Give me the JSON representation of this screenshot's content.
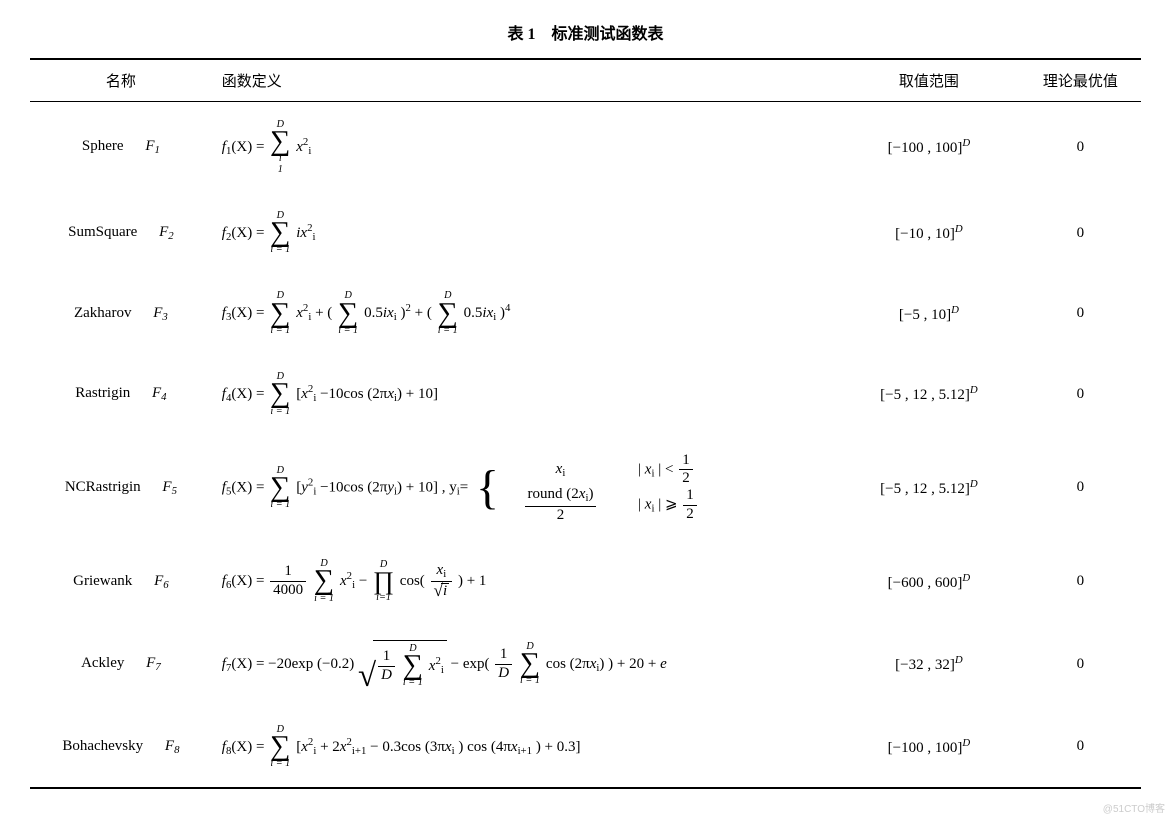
{
  "caption": "表 1　标准测试函数表",
  "headers": {
    "name": "名称",
    "definition": "函数定义",
    "range": "取值范围",
    "optimum": "理论最优值"
  },
  "rows": [
    {
      "name": "Sphere",
      "fsym": "F",
      "fidx": "1",
      "range_a": "[−100 , 100]",
      "range_exp": "D",
      "opt": "0",
      "lhs_f": "f",
      "lhs_i": "1"
    },
    {
      "name": "SumSquare",
      "fsym": "F",
      "fidx": "2",
      "range_a": "[−10 , 10]",
      "range_exp": "D",
      "opt": "0",
      "lhs_f": "f",
      "lhs_i": "2"
    },
    {
      "name": "Zakharov",
      "fsym": "F",
      "fidx": "3",
      "range_a": "[−5 , 10]",
      "range_exp": "D",
      "opt": "0",
      "lhs_f": "f",
      "lhs_i": "3"
    },
    {
      "name": "Rastrigin",
      "fsym": "F",
      "fidx": "4",
      "range_a": "[−5 , 12 , 5.12]",
      "range_exp": "D",
      "opt": "0",
      "lhs_f": "f",
      "lhs_i": "4"
    },
    {
      "name": "NCRastrigin",
      "fsym": "F",
      "fidx": "5",
      "range_a": "[−5 , 12 , 5.12]",
      "range_exp": "D",
      "opt": "0",
      "lhs_f": "f",
      "lhs_i": "5"
    },
    {
      "name": "Griewank",
      "fsym": "F",
      "fidx": "6",
      "range_a": "[−600 , 600]",
      "range_exp": "D",
      "opt": "0",
      "lhs_f": "f",
      "lhs_i": "6"
    },
    {
      "name": "Ackley",
      "fsym": "F",
      "fidx": "7",
      "range_a": "[−32 , 32]",
      "range_exp": "D",
      "opt": "0",
      "lhs_f": "f",
      "lhs_i": "7"
    },
    {
      "name": "Bohachevsky",
      "fsym": "F",
      "fidx": "8",
      "range_a": "[−100 , 100]",
      "range_exp": "D",
      "opt": "0",
      "lhs_f": "f",
      "lhs_i": "8"
    }
  ],
  "sym": {
    "sum_upper": "D",
    "sum_lower_i": "i",
    "sum_lower_i1": "i = 1",
    "sum_lower_1": "1",
    "pi_upper": "D",
    "pi_lower": "i=1",
    "X_arg": "(X) = ",
    "xi2": "x",
    "xi2_sub": "i",
    "xi2_sup": "2",
    "ixi2_pre": "i",
    "half_ixi": "0.5",
    "ix": "ix",
    "plus": " + ",
    "minus": "−",
    "eq": " = ",
    "lbr": "[",
    "rbr": "]",
    "lpr": "(",
    "rpr": ")",
    "comma": " , ",
    "rastrigin_body_a": "−10cos (2π",
    "rastrigin_body_b": ") + 10",
    "yi": "y",
    "yi_sub": "i",
    "ncr_yeq": ", y",
    "ncr_yeq2": "=",
    "abs_l": "| ",
    "abs_r": " |",
    "lt": " < ",
    "ge": " ⩾ ",
    "half_num": "1",
    "half_den": "2",
    "round_a": "round (2",
    "round_b": ")",
    "griewank_frac_num": "1",
    "griewank_frac_den": "4000",
    "griewank_minus_prod": " − ",
    "griewank_cos": "cos",
    "griewank_plus1": " + 1",
    "ackley_a": "−20exp (−0.2)",
    "ackley_invD_num": "1",
    "ackley_invD_den": "D",
    "ackley_minus_exp": " − exp",
    "ackley_cos": "cos (2π",
    "ackley_tail": ") + 20 + ",
    "ackley_e": "e",
    "boh_a": " + 2",
    "boh_xi1": "x",
    "boh_xi1_sub": "i+1",
    "boh_xi1_sup": "2",
    "boh_b": " − 0.3cos (3π",
    "boh_c": ") cos (4π",
    "boh_d": ") + 0.3"
  },
  "watermark": "@51CTO博客"
}
